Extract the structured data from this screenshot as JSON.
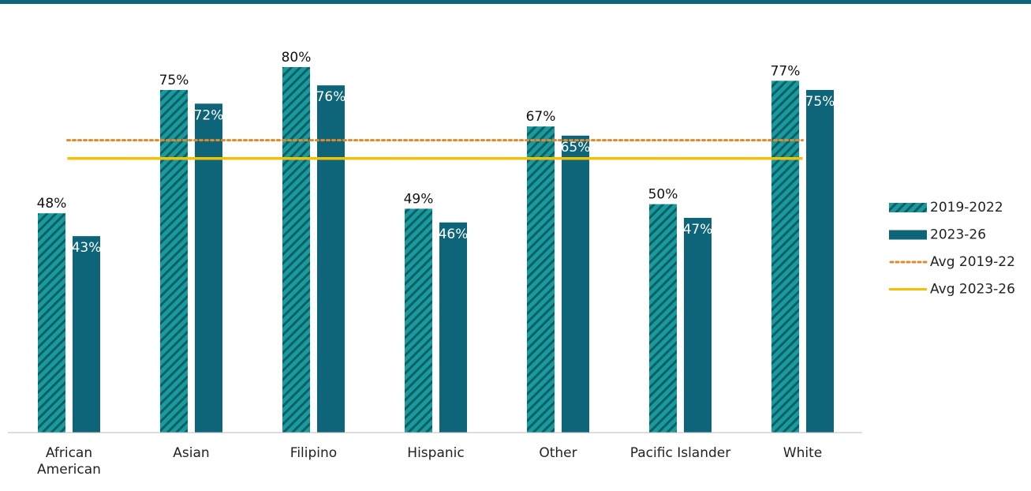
{
  "chart_data": {
    "type": "bar",
    "categories": [
      "African American",
      "Asian",
      "Filipino",
      "Hispanic",
      "Other",
      "Pacific Islander",
      "White"
    ],
    "series": [
      {
        "name": "2019-2022",
        "color": "#1a9b9b",
        "pattern": "hatched",
        "values": [
          48,
          75,
          80,
          49,
          67,
          50,
          77
        ],
        "value_labels": [
          "48%",
          "75%",
          "80%",
          "49%",
          "67%",
          "50%",
          "77%"
        ]
      },
      {
        "name": "2023-26",
        "color": "#0e6479",
        "values": [
          43,
          72,
          76,
          46,
          65,
          47,
          75
        ],
        "value_labels": [
          "43%",
          "72%",
          "76%",
          "46%",
          "65%",
          "47%",
          "75%"
        ]
      }
    ],
    "reference_lines": [
      {
        "name": "Avg 2019-22",
        "value": 64,
        "color": "#e08a2c",
        "style": "dotted"
      },
      {
        "name": "Avg 2023-26",
        "value": 60,
        "color": "#f5c000",
        "style": "solid"
      }
    ],
    "ylim": [
      0,
      80
    ],
    "legend": "right"
  }
}
